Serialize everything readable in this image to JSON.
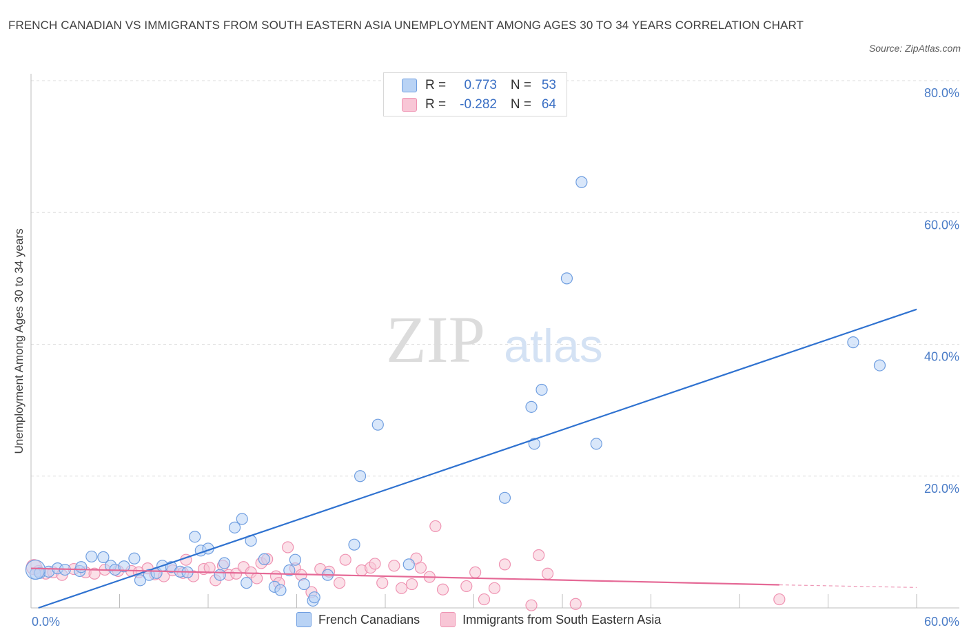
{
  "title": "FRENCH CANADIAN VS IMMIGRANTS FROM SOUTH EASTERN ASIA UNEMPLOYMENT AMONG AGES 30 TO 34 YEARS CORRELATION CHART",
  "source": "Source: ZipAtlas.com",
  "watermark": {
    "zip": "ZIP",
    "atlas": "atlas"
  },
  "colors": {
    "blue_fill": "#b9d3f5",
    "blue_stroke": "#6f9ee0",
    "blue_line": "#2f72d0",
    "pink_fill": "#f8c6d6",
    "pink_stroke": "#ef93b2",
    "pink_line": "#e56996",
    "tick_text": "#4a7cc7",
    "grid": "#dedede"
  },
  "legend": {
    "rows": [
      {
        "r_label": "R =",
        "r_value": "0.773",
        "n_label": "N =",
        "n_value": "53"
      },
      {
        "r_label": "R =",
        "r_value": "-0.282",
        "n_label": "N =",
        "n_value": "64"
      }
    ]
  },
  "chart_data": {
    "type": "scatter",
    "title": "FRENCH CANADIAN VS IMMIGRANTS FROM SOUTH EASTERN ASIA UNEMPLOYMENT AMONG AGES 30 TO 34 YEARS CORRELATION CHART",
    "xlabel": "",
    "ylabel": "Unemployment Among Ages 30 to 34 years",
    "xlim": [
      0,
      60
    ],
    "ylim": [
      0,
      80
    ],
    "x_tick_labels": [
      "0.0%",
      "60.0%"
    ],
    "y_ticks": [
      20,
      40,
      60,
      80
    ],
    "y_tick_labels": [
      "20.0%",
      "40.0%",
      "60.0%",
      "80.0%"
    ],
    "grid": true,
    "series": [
      {
        "name": "French Canadians",
        "r": 0.773,
        "n": 53,
        "trend": {
          "x": [
            0.5,
            60
          ],
          "y": [
            0.0,
            45.3
          ]
        },
        "points": [
          [
            0.3,
            5.2
          ],
          [
            0.6,
            5.3
          ],
          [
            1.2,
            5.5
          ],
          [
            1.8,
            6.0
          ],
          [
            2.3,
            5.8
          ],
          [
            3.3,
            5.6
          ],
          [
            3.4,
            6.2
          ],
          [
            4.1,
            7.8
          ],
          [
            4.9,
            7.7
          ],
          [
            5.4,
            6.4
          ],
          [
            5.7,
            5.8
          ],
          [
            6.3,
            6.3
          ],
          [
            7.0,
            7.5
          ],
          [
            7.4,
            4.2
          ],
          [
            8.0,
            5.0
          ],
          [
            8.5,
            5.3
          ],
          [
            8.9,
            6.4
          ],
          [
            9.5,
            6.2
          ],
          [
            10.1,
            5.5
          ],
          [
            10.6,
            5.4
          ],
          [
            11.1,
            10.8
          ],
          [
            11.5,
            8.7
          ],
          [
            12.0,
            9.0
          ],
          [
            12.8,
            5.0
          ],
          [
            13.1,
            6.8
          ],
          [
            13.8,
            12.2
          ],
          [
            14.3,
            13.5
          ],
          [
            14.6,
            3.8
          ],
          [
            14.9,
            10.2
          ],
          [
            15.8,
            7.4
          ],
          [
            16.5,
            3.2
          ],
          [
            16.9,
            2.7
          ],
          [
            17.5,
            5.7
          ],
          [
            17.9,
            7.3
          ],
          [
            18.5,
            3.6
          ],
          [
            19.1,
            1.1
          ],
          [
            19.2,
            1.6
          ],
          [
            20.1,
            5.0
          ],
          [
            21.9,
            9.6
          ],
          [
            22.3,
            20.0
          ],
          [
            23.5,
            27.8
          ],
          [
            25.6,
            6.6
          ],
          [
            32.1,
            16.7
          ],
          [
            33.9,
            30.5
          ],
          [
            34.1,
            24.9
          ],
          [
            34.6,
            33.1
          ],
          [
            36.3,
            50.0
          ],
          [
            37.3,
            64.6
          ],
          [
            38.3,
            24.9
          ],
          [
            55.7,
            40.3
          ],
          [
            57.5,
            36.8
          ]
        ]
      },
      {
        "name": "Immigrants from South Eastern Asia",
        "r": -0.282,
        "n": 64,
        "trend": {
          "x": [
            0,
            50.7
          ],
          "y": [
            6.0,
            3.5
          ]
        },
        "trend_dashed": {
          "x": [
            50.7,
            60
          ],
          "y": [
            3.5,
            3.1
          ]
        },
        "points": [
          [
            0.5,
            5.6
          ],
          [
            1.0,
            5.2
          ],
          [
            1.5,
            5.4
          ],
          [
            2.1,
            5.0
          ],
          [
            2.9,
            5.9
          ],
          [
            3.7,
            5.4
          ],
          [
            4.3,
            5.2
          ],
          [
            5.0,
            5.8
          ],
          [
            5.9,
            5.6
          ],
          [
            6.8,
            5.6
          ],
          [
            7.3,
            5.4
          ],
          [
            7.9,
            6.0
          ],
          [
            8.4,
            5.1
          ],
          [
            9.0,
            4.8
          ],
          [
            9.6,
            5.7
          ],
          [
            10.3,
            5.3
          ],
          [
            10.5,
            7.3
          ],
          [
            11.0,
            4.8
          ],
          [
            11.7,
            5.9
          ],
          [
            12.1,
            6.1
          ],
          [
            12.5,
            4.2
          ],
          [
            13.0,
            6.4
          ],
          [
            13.4,
            5.0
          ],
          [
            13.9,
            5.2
          ],
          [
            14.4,
            6.2
          ],
          [
            14.9,
            5.4
          ],
          [
            15.3,
            4.5
          ],
          [
            15.6,
            6.8
          ],
          [
            16.0,
            7.4
          ],
          [
            16.6,
            4.8
          ],
          [
            16.8,
            3.8
          ],
          [
            17.4,
            9.2
          ],
          [
            17.9,
            6.0
          ],
          [
            18.3,
            5.0
          ],
          [
            19.0,
            2.4
          ],
          [
            19.6,
            5.9
          ],
          [
            20.2,
            5.5
          ],
          [
            20.9,
            3.8
          ],
          [
            21.3,
            7.3
          ],
          [
            22.4,
            5.7
          ],
          [
            23.0,
            6.1
          ],
          [
            23.3,
            6.7
          ],
          [
            23.8,
            3.8
          ],
          [
            24.6,
            6.4
          ],
          [
            25.1,
            3.0
          ],
          [
            25.8,
            3.6
          ],
          [
            26.1,
            7.5
          ],
          [
            26.4,
            6.1
          ],
          [
            27.0,
            4.7
          ],
          [
            27.4,
            12.4
          ],
          [
            27.9,
            2.8
          ],
          [
            29.5,
            3.3
          ],
          [
            30.1,
            5.4
          ],
          [
            30.7,
            1.3
          ],
          [
            31.4,
            3.0
          ],
          [
            32.1,
            6.6
          ],
          [
            33.9,
            0.4
          ],
          [
            34.4,
            8.0
          ],
          [
            35.0,
            5.2
          ],
          [
            36.9,
            0.6
          ],
          [
            50.7,
            1.3
          ]
        ]
      }
    ]
  },
  "bottom_legend": {
    "items": [
      {
        "label": "French Canadians"
      },
      {
        "label": "Immigrants from South Eastern Asia"
      }
    ]
  }
}
